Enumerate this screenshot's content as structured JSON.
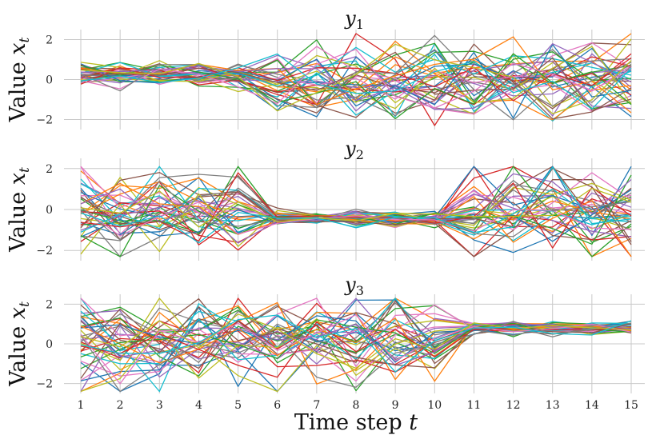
{
  "chart_data": {
    "type": "line",
    "xlabel_prefix": "Time step ",
    "xlabel_var": "t",
    "x": [
      1,
      2,
      3,
      4,
      5,
      6,
      7,
      8,
      9,
      10,
      11,
      12,
      13,
      14,
      15
    ],
    "palette": [
      "#1f77b4",
      "#ff7f0e",
      "#2ca02c",
      "#d62728",
      "#9467bd",
      "#8c564b",
      "#e377c2",
      "#7f7f7f",
      "#bcbd22",
      "#17becf"
    ],
    "num_series_per_panel": 40,
    "panels": [
      {
        "title_var": "y",
        "title_sub": "1",
        "ylabel_prefix": "Value ",
        "ylabel_var": "x",
        "ylabel_sub": "t",
        "ylim": [
          -2.5,
          2.5
        ],
        "yticks": [
          -2,
          0,
          2
        ],
        "ytick_labels": [
          "−2",
          "0",
          "2"
        ],
        "pattern": "tight cluster near 0 for t=1–5, widely dispersed between −2 and 2 for t=6–15"
      },
      {
        "title_var": "y",
        "title_sub": "2",
        "ylabel_prefix": "Value ",
        "ylabel_var": "x",
        "ylabel_sub": "t",
        "ylim": [
          -2.5,
          2.5
        ],
        "yticks": [
          -2,
          0,
          2
        ],
        "ytick_labels": [
          "−2",
          "0",
          "2"
        ],
        "pattern": "dispersed for t=1–5, tight cluster near −0.4 for t=6–10, dispersed for t=11–15"
      },
      {
        "title_var": "y",
        "title_sub": "3",
        "ylabel_prefix": "Value ",
        "ylabel_var": "x",
        "ylabel_sub": "t",
        "ylim": [
          -2.5,
          2.5
        ],
        "yticks": [
          -2,
          0,
          2
        ],
        "ytick_labels": [
          "−2",
          "0",
          "2"
        ],
        "pattern": "dispersed between −2 and 2 for t=1–10, tight cluster near 0.8 for t=11–15"
      }
    ]
  }
}
